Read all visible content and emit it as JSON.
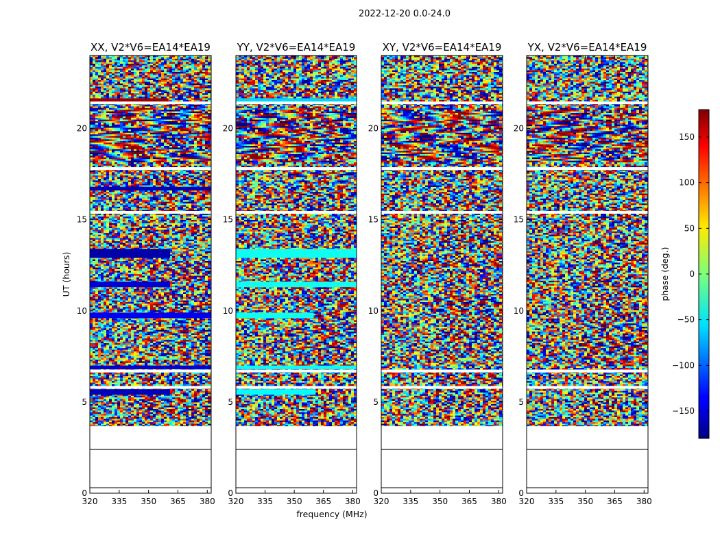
{
  "figure_title": "2022-12-20 0.0-24.0",
  "colors": {
    "colormap": "jet",
    "frame": "#000000",
    "background": "#ffffff"
  },
  "chart_data": [
    {
      "type": "heatmap",
      "title": "XX, V2*V6=EA14*EA19",
      "xlabel": "",
      "ylabel": "UT (hours)",
      "xlim": [
        320,
        382
      ],
      "ylim": [
        0,
        24
      ],
      "xticks": [
        320,
        335,
        350,
        365,
        380
      ],
      "yticks": [
        0,
        5,
        10,
        15,
        20
      ],
      "data_extent_y": [
        3.7,
        24
      ],
      "blank_rows_y": [
        3.6,
        5.8,
        6.7,
        15.4,
        17.8,
        21.4
      ],
      "solid_bands": [
        {
          "y": [
            21.4,
            21.65
          ],
          "x": [
            320,
            360
          ],
          "phase": 170
        },
        {
          "y": [
            16.6,
            16.8
          ],
          "x": [
            320,
            382
          ],
          "phase": -160
        },
        {
          "y": [
            12.9,
            13.4
          ],
          "x": [
            320,
            361
          ],
          "phase": -165
        },
        {
          "y": [
            11.3,
            11.6
          ],
          "x": [
            320,
            361
          ],
          "phase": -150
        },
        {
          "y": [
            9.6,
            9.9
          ],
          "x": [
            320,
            382
          ],
          "phase": -140
        },
        {
          "y": [
            6.8,
            7.0
          ],
          "x": [
            320,
            382
          ],
          "phase": -150
        },
        {
          "y": [
            5.4,
            5.7
          ],
          "x": [
            320,
            361
          ],
          "phase": -160
        }
      ]
    },
    {
      "type": "heatmap",
      "title": "YY, V2*V6=EA14*EA19",
      "xlabel": "frequency (MHz)",
      "ylabel": "",
      "xlim": [
        320,
        382
      ],
      "ylim": [
        0,
        24
      ],
      "xticks": [
        320,
        335,
        350,
        365,
        380
      ],
      "yticks": [
        0,
        5,
        10,
        15,
        20
      ],
      "data_extent_y": [
        3.7,
        24
      ],
      "blank_rows_y": [
        3.6,
        5.8,
        6.7,
        15.4,
        17.8,
        21.4
      ],
      "solid_bands": [
        {
          "y": [
            21.4,
            21.65
          ],
          "x": [
            320,
            382
          ],
          "phase": -60
        },
        {
          "y": [
            12.9,
            13.4
          ],
          "x": [
            320,
            382
          ],
          "phase": -40
        },
        {
          "y": [
            11.3,
            11.6
          ],
          "x": [
            320,
            382
          ],
          "phase": -40
        },
        {
          "y": [
            9.6,
            9.9
          ],
          "x": [
            320,
            360
          ],
          "phase": -40
        },
        {
          "y": [
            6.8,
            7.0
          ],
          "x": [
            320,
            382
          ],
          "phase": -45
        },
        {
          "y": [
            5.4,
            5.7
          ],
          "x": [
            320,
            361
          ],
          "phase": -45
        }
      ]
    },
    {
      "type": "heatmap",
      "title": "XY, V2*V6=EA14*EA19",
      "xlabel": "",
      "ylabel": "",
      "xlim": [
        320,
        382
      ],
      "ylim": [
        0,
        24
      ],
      "xticks": [
        320,
        335,
        350,
        365,
        380
      ],
      "yticks": [
        0,
        5,
        10,
        15,
        20
      ],
      "data_extent_y": [
        3.7,
        24
      ],
      "blank_rows_y": [
        3.6,
        5.8,
        6.7,
        15.4,
        17.8,
        21.4
      ],
      "solid_bands": []
    },
    {
      "type": "heatmap",
      "title": "YX, V2*V6=EA14*EA19",
      "xlabel": "",
      "ylabel": "",
      "xlim": [
        320,
        382
      ],
      "ylim": [
        0,
        24
      ],
      "xticks": [
        320,
        335,
        350,
        365,
        380
      ],
      "yticks": [
        0,
        5,
        10,
        15,
        20
      ],
      "data_extent_y": [
        3.7,
        24
      ],
      "blank_rows_y": [
        3.6,
        5.8,
        6.7,
        15.4,
        17.8,
        21.4
      ],
      "solid_bands": []
    }
  ],
  "colorbar": {
    "label": "phase (deg.)",
    "range": [
      -180,
      180
    ],
    "ticks": [
      -150,
      -100,
      -50,
      0,
      50,
      100,
      150
    ],
    "tick_labels": [
      "−150",
      "−100",
      "−50",
      "0",
      "50",
      "100",
      "150"
    ]
  }
}
